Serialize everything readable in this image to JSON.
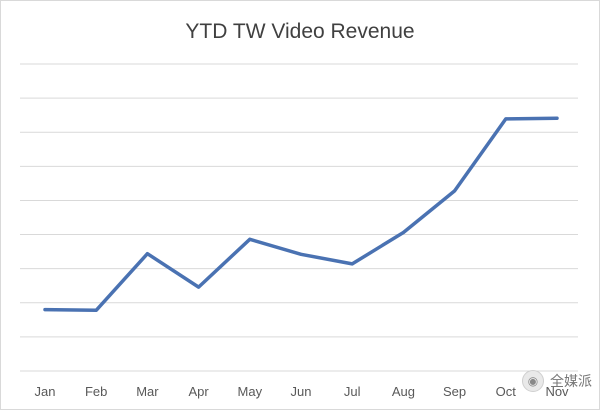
{
  "chart_data": {
    "type": "line",
    "title": "YTD TW Video Revenue",
    "xlabel": "",
    "ylabel": "",
    "categories": [
      "Jan",
      "Feb",
      "Mar",
      "Apr",
      "May",
      "Jun",
      "Jul",
      "Aug",
      "Sep",
      "Oct",
      "Nov"
    ],
    "series": [
      {
        "values": [
          1.8,
          1.78,
          3.44,
          2.46,
          3.86,
          3.42,
          3.14,
          4.06,
          5.28,
          7.39,
          7.41
        ],
        "color": "#4a72b2"
      }
    ],
    "ylim": [
      0,
      9
    ],
    "y_gridlines": [
      1,
      2,
      3,
      4,
      5,
      6,
      7,
      8,
      9
    ],
    "y_tick_labels_shown": false,
    "grid": true,
    "legend": "none",
    "gridline_color": "#d9d9d9"
  },
  "watermark": {
    "text": "全媒派",
    "icon": "wechat-bubble-icon"
  }
}
